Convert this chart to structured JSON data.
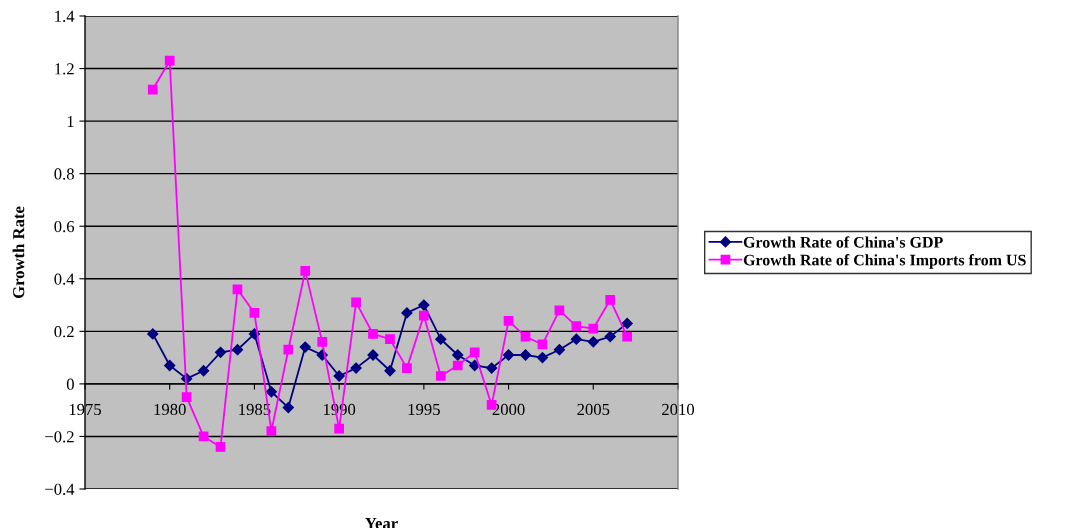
{
  "chart_data": {
    "type": "line",
    "xlabel": "Year",
    "ylabel": "Growth Rate",
    "x": [
      1979,
      1980,
      1981,
      1982,
      1983,
      1984,
      1985,
      1986,
      1987,
      1988,
      1989,
      1990,
      1991,
      1992,
      1993,
      1994,
      1995,
      1996,
      1997,
      1998,
      1999,
      2000,
      2001,
      2002,
      2003,
      2004,
      2005,
      2006,
      2007
    ],
    "series": [
      {
        "name": "Growth Rate of China's GDP",
        "color": "#000080",
        "marker": "diamond",
        "values": [
          0.19,
          0.07,
          0.02,
          0.05,
          0.12,
          0.13,
          0.19,
          -0.03,
          -0.09,
          0.14,
          0.11,
          0.03,
          0.06,
          0.11,
          0.05,
          0.27,
          0.3,
          0.17,
          0.11,
          0.07,
          0.06,
          0.11,
          0.11,
          0.1,
          0.13,
          0.17,
          0.16,
          0.18,
          0.23
        ]
      },
      {
        "name": "Growth Rate of China's Imports from US",
        "color": "#ff00ff",
        "marker": "square",
        "values": [
          1.12,
          1.23,
          -0.05,
          -0.2,
          -0.24,
          0.36,
          0.27,
          -0.18,
          0.13,
          0.43,
          0.16,
          -0.17,
          0.31,
          0.19,
          0.17,
          0.06,
          0.26,
          0.03,
          0.07,
          0.12,
          -0.08,
          0.24,
          0.18,
          0.15,
          0.28,
          0.22,
          0.21,
          0.32,
          0.18
        ]
      }
    ],
    "xlim": [
      1975,
      2010
    ],
    "xticks": [
      1975,
      1980,
      1985,
      1990,
      1995,
      2000,
      2005,
      2010
    ],
    "ylim": [
      -0.4,
      1.4
    ],
    "yticks": [
      -0.4,
      -0.2,
      0,
      0.2,
      0.4,
      0.6,
      0.8,
      1,
      1.2,
      1.4
    ],
    "grid": "y",
    "legend": "right"
  }
}
